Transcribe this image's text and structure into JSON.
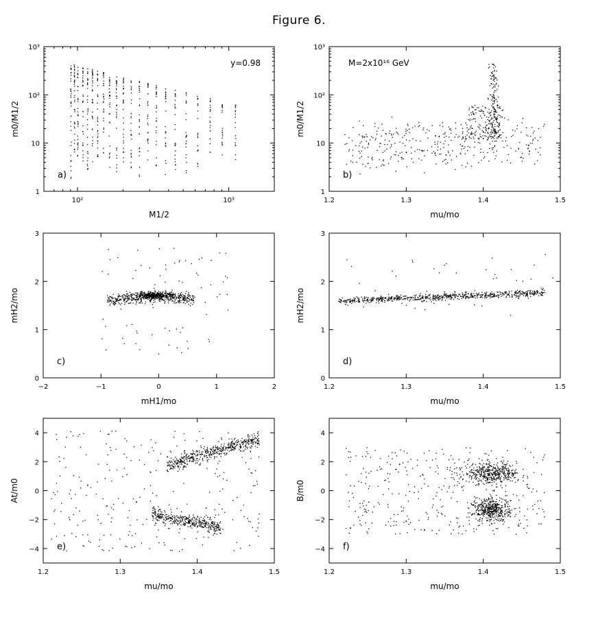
{
  "figure_title": "Figure 6.",
  "chart_data": [
    {
      "id": "a",
      "type": "scatter",
      "panel_label": "a)",
      "annotation": "y=0.98",
      "xlabel": "M1/2",
      "ylabel": "m0/M1/2",
      "xscale": "log",
      "yscale": "log",
      "xlim": [
        60,
        2000
      ],
      "ylim": [
        1,
        1000
      ],
      "xticks": [
        {
          "v": 100,
          "t": "10²"
        },
        {
          "v": 1000,
          "t": "10³"
        }
      ],
      "yticks": [
        {
          "v": 1,
          "t": "1"
        },
        {
          "v": 10,
          "t": "10"
        },
        {
          "v": 100,
          "t": "10²"
        },
        {
          "v": 1000,
          "t": "10³"
        }
      ],
      "distribution": "vertical columns of points at discrete M1/2 values (~90–1100), upper bound decreasing from ~450 to ~70, lower bound ~1.5–5"
    },
    {
      "id": "b",
      "type": "scatter",
      "panel_label": "b)",
      "annotation": "M=2x10¹⁶ GeV",
      "xlabel": "mu/mo",
      "ylabel": "m0/M1/2",
      "xscale": "linear",
      "yscale": "log",
      "xlim": [
        1.2,
        1.5
      ],
      "ylim": [
        1,
        1000
      ],
      "xticks": [
        {
          "v": 1.2,
          "t": "1.2"
        },
        {
          "v": 1.3,
          "t": "1.3"
        },
        {
          "v": 1.4,
          "t": "1.4"
        },
        {
          "v": 1.5,
          "t": "1.5"
        }
      ],
      "yticks": [
        {
          "v": 1,
          "t": "1"
        },
        {
          "v": 10,
          "t": "10"
        },
        {
          "v": 100,
          "t": "10²"
        },
        {
          "v": 1000,
          "t": "10³"
        }
      ],
      "distribution": "sparse points 1.23–1.48 with m0/M1/2 ~3–20, dense spike at mu/mo≈1.41 rising to ~450"
    },
    {
      "id": "c",
      "type": "scatter",
      "panel_label": "c)",
      "xlabel": "mH1/mo",
      "ylabel": "mH2/mo",
      "xscale": "linear",
      "yscale": "linear",
      "xlim": [
        -2,
        2
      ],
      "ylim": [
        0,
        3
      ],
      "xticks": [
        {
          "v": -2,
          "t": "−2"
        },
        {
          "v": -1,
          "t": "−1"
        },
        {
          "v": 0,
          "t": "0"
        },
        {
          "v": 1,
          "t": "1"
        },
        {
          "v": 2,
          "t": "2"
        }
      ],
      "yticks": [
        {
          "v": 0,
          "t": "0"
        },
        {
          "v": 1,
          "t": "1"
        },
        {
          "v": 2,
          "t": "2"
        },
        {
          "v": 3,
          "t": "3"
        }
      ],
      "distribution": "dense cluster mH1/mo ∈ [-1, 0.7] around mH2/mo≈1.7, sparse outliers"
    },
    {
      "id": "d",
      "type": "scatter",
      "panel_label": "d)",
      "xlabel": "mu/mo",
      "ylabel": "mH2/mo",
      "xscale": "linear",
      "yscale": "linear",
      "xlim": [
        1.2,
        1.5
      ],
      "ylim": [
        0,
        3
      ],
      "xticks": [
        {
          "v": 1.2,
          "t": "1.2"
        },
        {
          "v": 1.3,
          "t": "1.3"
        },
        {
          "v": 1.4,
          "t": "1.4"
        },
        {
          "v": 1.5,
          "t": "1.5"
        }
      ],
      "yticks": [
        {
          "v": 0,
          "t": "0"
        },
        {
          "v": 1,
          "t": "1"
        },
        {
          "v": 2,
          "t": "2"
        },
        {
          "v": 3,
          "t": "3"
        }
      ],
      "distribution": "narrow band rising from mH2/mo≈1.6 at 1.21 to ≈1.78 at 1.48"
    },
    {
      "id": "e",
      "type": "scatter",
      "panel_label": "e)",
      "xlabel": "mu/mo",
      "ylabel": "At/m0",
      "xscale": "linear",
      "yscale": "linear",
      "xlim": [
        1.2,
        1.5
      ],
      "ylim": [
        -5,
        5
      ],
      "xticks": [
        {
          "v": 1.2,
          "t": "1.2"
        },
        {
          "v": 1.3,
          "t": "1.3"
        },
        {
          "v": 1.4,
          "t": "1.4"
        },
        {
          "v": 1.5,
          "t": "1.5"
        }
      ],
      "yticks": [
        {
          "v": -4,
          "t": "−4"
        },
        {
          "v": -2,
          "t": "−2"
        },
        {
          "v": 0,
          "t": "0"
        },
        {
          "v": 2,
          "t": "2"
        },
        {
          "v": 4,
          "t": "4"
        }
      ],
      "distribution": "upper branch rising from ~1.8 at 1.37 to ~3.7 at 1.48; lower branch from ~-1.6 at 1.37 to ~-2.5 at 1.42; sparse scatter around 0"
    },
    {
      "id": "f",
      "type": "scatter",
      "panel_label": "f)",
      "xlabel": "mu/mo",
      "ylabel": "B/m0",
      "xscale": "linear",
      "yscale": "linear",
      "xlim": [
        1.2,
        1.5
      ],
      "ylim": [
        -5,
        5
      ],
      "xticks": [
        {
          "v": 1.2,
          "t": "1.2"
        },
        {
          "v": 1.3,
          "t": "1.3"
        },
        {
          "v": 1.4,
          "t": "1.4"
        },
        {
          "v": 1.5,
          "t": "1.5"
        }
      ],
      "yticks": [
        {
          "v": -4,
          "t": "−4"
        },
        {
          "v": -2,
          "t": "−2"
        },
        {
          "v": 0,
          "t": "0"
        },
        {
          "v": 2,
          "t": "2"
        },
        {
          "v": 4,
          "t": "4"
        }
      ],
      "distribution": "two dense blobs at mu/mo≈1.41: B/m0≈+1.3 and ≈-1.3, sparse scatter 1.22–1.48"
    }
  ]
}
